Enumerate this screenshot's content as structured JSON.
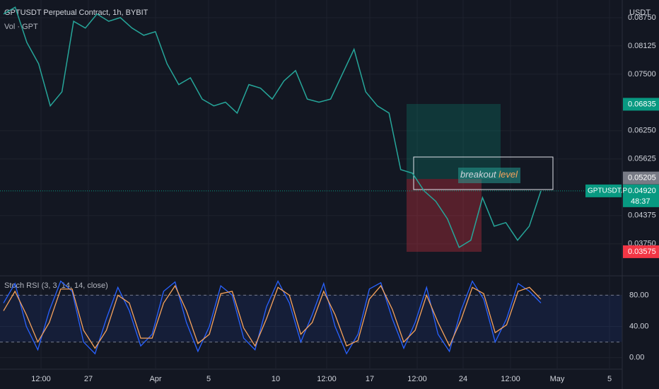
{
  "chart_data": [
    {
      "type": "line",
      "title": "GPTUSDT Perpetual Contract, 1h, BYBIT",
      "subtitle": "Vol · GPT",
      "currency": "USDT",
      "color": "#26a69a",
      "values": [
        0.0883,
        0.0898,
        0.082,
        0.0773,
        0.068,
        0.0711,
        0.0867,
        0.0852,
        0.0883,
        0.0867,
        0.0875,
        0.0852,
        0.0836,
        0.0844,
        0.0773,
        0.0727,
        0.0742,
        0.0695,
        0.068,
        0.0688,
        0.0664,
        0.0727,
        0.0719,
        0.0695,
        0.0735,
        0.0758,
        0.0695,
        0.0688,
        0.0695,
        0.075,
        0.0805,
        0.0711,
        0.068,
        0.0664,
        0.0539,
        0.0531,
        0.0492,
        0.0469,
        0.043,
        0.0367,
        0.0383,
        0.0477,
        0.0414,
        0.0422,
        0.0383,
        0.0414,
        0.0492
      ],
      "ylim": [
        0.0312,
        0.0914
      ],
      "yticks": [
        {
          "value": 0.0875,
          "label": "0.08750"
        },
        {
          "value": 0.08125,
          "label": "0.08125"
        },
        {
          "value": 0.075,
          "label": "0.07500"
        },
        {
          "value": 0.0625,
          "label": "0.06250"
        },
        {
          "value": 0.05625,
          "label": "0.05625"
        },
        {
          "value": 0.04375,
          "label": "0.04375"
        },
        {
          "value": 0.0375,
          "label": "0.03750"
        }
      ],
      "price_badges": [
        {
          "value": 0.06835,
          "label": "0.06835",
          "color": "#089981"
        },
        {
          "value": 0.05205,
          "label": "0.05205",
          "color": "#787b86"
        },
        {
          "value": 0.0492,
          "label": "0.04920",
          "color": "#089981"
        },
        {
          "value": 0.03575,
          "label": "0.03575",
          "color": "#f23645"
        }
      ],
      "symbol_label": "GPTUSDT.P",
      "countdown": "48:37",
      "annotation": [
        "breakout",
        "level"
      ],
      "xticks": [
        "12:00",
        "27",
        "Apr",
        "5",
        "10",
        "12:00",
        "17",
        "12:00",
        "24",
        "12:00",
        "May",
        "5"
      ]
    },
    {
      "type": "line",
      "title": "Stoch RSI (3, 3, 14, 14, close)",
      "series": [
        {
          "color": "#2962ff",
          "values": [
            70,
            95,
            40,
            10,
            60,
            98,
            85,
            20,
            5,
            50,
            90,
            60,
            15,
            30,
            85,
            97,
            45,
            8,
            40,
            92,
            80,
            25,
            10,
            65,
            98,
            70,
            20,
            55,
            95,
            40,
            5,
            30,
            88,
            96,
            50,
            12,
            45,
            90,
            30,
            8,
            60,
            98,
            75,
            20,
            50,
            95,
            85,
            70
          ]
        },
        {
          "color": "#f7a35c",
          "values": [
            60,
            85,
            55,
            20,
            45,
            88,
            88,
            35,
            12,
            35,
            80,
            70,
            25,
            25,
            70,
            92,
            60,
            18,
            30,
            82,
            85,
            38,
            15,
            50,
            90,
            80,
            30,
            45,
            85,
            55,
            15,
            22,
            75,
            92,
            62,
            20,
            35,
            80,
            45,
            15,
            48,
            90,
            82,
            32,
            42,
            85,
            90,
            75
          ]
        }
      ],
      "ylim": [
        -13,
        103
      ],
      "yticks": [
        {
          "value": 80,
          "label": "80.00"
        },
        {
          "value": 40,
          "label": "40.00"
        },
        {
          "value": 0,
          "label": "0.00"
        }
      ],
      "band": [
        20,
        80
      ]
    }
  ]
}
